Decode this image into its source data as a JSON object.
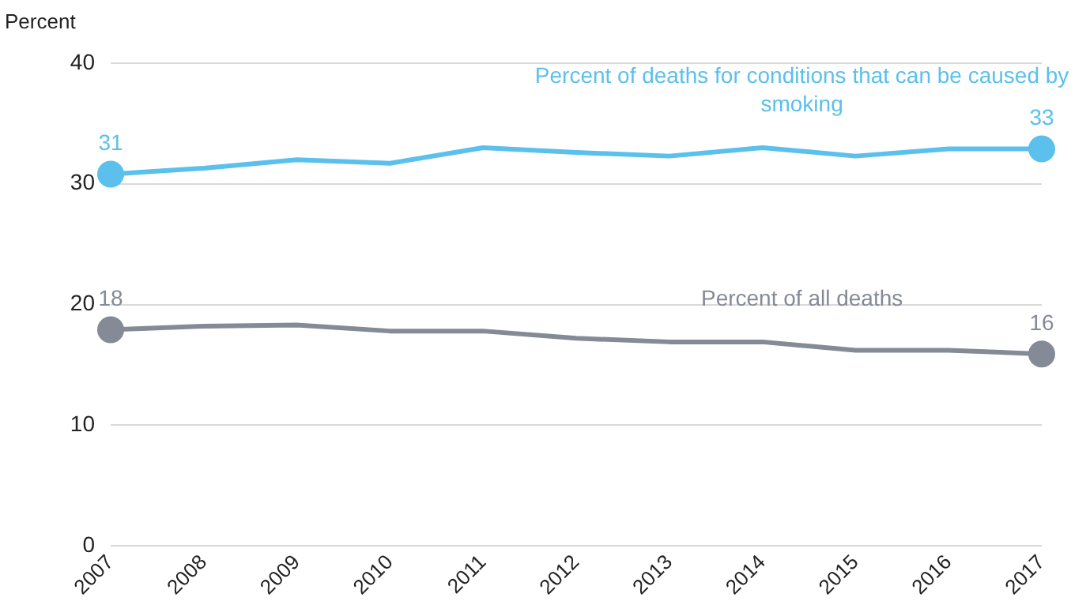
{
  "chart_data": {
    "type": "line",
    "ylabel": "Percent",
    "categories": [
      "2007",
      "2008",
      "2009",
      "2010",
      "2011",
      "2012",
      "2013",
      "2014",
      "2015",
      "2016",
      "2017"
    ],
    "series": [
      {
        "name": "Percent of deaths for conditions that can be caused by smoking",
        "color": "#5bc0eb",
        "values": [
          30.8,
          31.3,
          32.0,
          31.7,
          33.0,
          32.6,
          32.3,
          33.0,
          32.3,
          32.9,
          32.9
        ],
        "value_labels": [
          "31",
          null,
          null,
          null,
          null,
          null,
          null,
          null,
          null,
          null,
          "33"
        ]
      },
      {
        "name": "Percent of all deaths",
        "color": "#848b96",
        "values": [
          17.9,
          18.2,
          18.3,
          17.8,
          17.8,
          17.2,
          16.9,
          16.9,
          16.2,
          16.2,
          15.9
        ],
        "value_labels": [
          "18",
          null,
          null,
          null,
          null,
          null,
          null,
          null,
          null,
          null,
          "16"
        ]
      }
    ],
    "ylim": [
      0,
      40
    ],
    "yticks": [
      0,
      10,
      20,
      30,
      40
    ],
    "grid": "y",
    "legend": false,
    "line_style": "solid"
  }
}
